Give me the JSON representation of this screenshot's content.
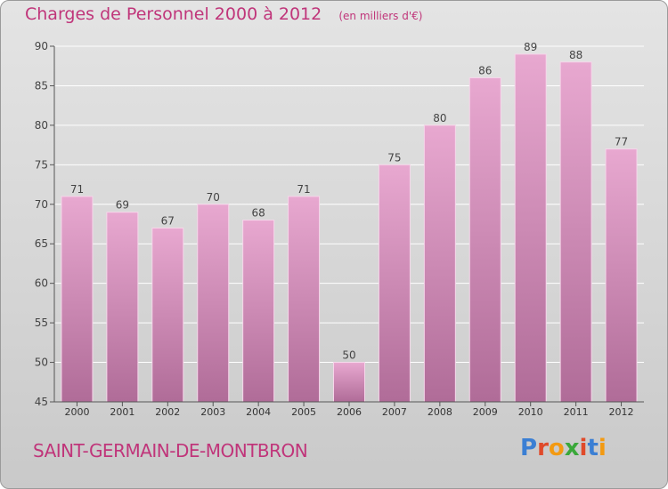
{
  "header": {
    "title": "Charges de Personnel 2000 à 2012",
    "subtitle": "(en milliers d'€)"
  },
  "footer": {
    "commune": "SAINT-GERMAIN-DE-MONTBRON",
    "logo": "Proxiti"
  },
  "colors": {
    "title": "#c0357a",
    "bar_top": "#e8a8d0",
    "bar_bottom": "#b06c98",
    "logo_letters": [
      "#3b7fd4",
      "#e04a2a",
      "#f39a12",
      "#3aa83a",
      "#e04a2a",
      "#3b7fd4",
      "#f39a12"
    ]
  },
  "chart_data": {
    "type": "bar",
    "title": "Charges de Personnel 2000 à 2012",
    "subtitle": "(en milliers d'€)",
    "categories": [
      "2000",
      "2001",
      "2002",
      "2003",
      "2004",
      "2005",
      "2006",
      "2007",
      "2008",
      "2009",
      "2010",
      "2011",
      "2012"
    ],
    "values": [
      71,
      69,
      67,
      70,
      68,
      71,
      50,
      75,
      80,
      86,
      89,
      88,
      77
    ],
    "ylim": [
      45,
      90
    ],
    "yticks": [
      45,
      50,
      55,
      60,
      65,
      70,
      75,
      80,
      85,
      90
    ],
    "grid": true,
    "xlabel": "",
    "ylabel": ""
  }
}
